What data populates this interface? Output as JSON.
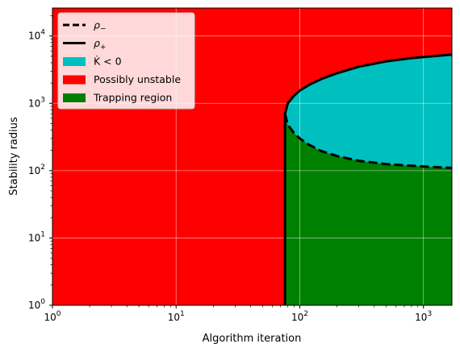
{
  "chart_data": {
    "type": "area",
    "xlabel": "Algorithm iteration",
    "ylabel": "Stability radius",
    "xscale": "log",
    "yscale": "log",
    "xlim": [
      1,
      1700
    ],
    "ylim": [
      1,
      26000
    ],
    "grid": true,
    "legend_position": "upper-left",
    "x_ticks": [
      {
        "value": 1,
        "base": "10",
        "exp": "0"
      },
      {
        "value": 10,
        "base": "10",
        "exp": "1"
      },
      {
        "value": 100,
        "base": "10",
        "exp": "2"
      },
      {
        "value": 1000,
        "base": "10",
        "exp": "3"
      }
    ],
    "y_ticks": [
      {
        "value": 1,
        "base": "10",
        "exp": "0"
      },
      {
        "value": 10,
        "base": "10",
        "exp": "1"
      },
      {
        "value": 100,
        "base": "10",
        "exp": "2"
      },
      {
        "value": 1000,
        "base": "10",
        "exp": "3"
      },
      {
        "value": 10000,
        "base": "10",
        "exp": "4"
      }
    ],
    "legend": [
      {
        "kind": "dashed-line",
        "main": "ρ",
        "sub": "−",
        "color": "#000000"
      },
      {
        "kind": "solid-line",
        "main": "ρ",
        "sub": "+",
        "color": "#000000"
      },
      {
        "kind": "patch",
        "label": "K̇ < 0",
        "color": "#00bfbf"
      },
      {
        "kind": "patch",
        "label": "Possibly unstable",
        "color": "#ff0000"
      },
      {
        "kind": "patch",
        "label": "Trapping region",
        "color": "#008000"
      }
    ],
    "colors": {
      "possibly_unstable": "#ff0000",
      "trapping_region": "#008000",
      "k_dot_negative": "#00bfbf",
      "boundary": "#000000"
    },
    "series": [
      {
        "name": "ρ−",
        "style": "dashed",
        "x": [
          76,
          80,
          90,
          100,
          120,
          150,
          200,
          300,
          500,
          800,
          1200,
          1700
        ],
        "y": [
          700,
          480,
          360,
          300,
          240,
          195,
          165,
          140,
          125,
          118,
          113,
          110
        ]
      },
      {
        "name": "ρ+",
        "style": "solid",
        "x": [
          76,
          80,
          90,
          100,
          120,
          150,
          200,
          300,
          500,
          800,
          1200,
          1700
        ],
        "y": [
          700,
          1000,
          1300,
          1550,
          1900,
          2300,
          2800,
          3500,
          4200,
          4700,
          5000,
          5300
        ]
      }
    ],
    "vertical_boundary": {
      "x": 76,
      "y_from": 1,
      "y_to": 700
    }
  }
}
